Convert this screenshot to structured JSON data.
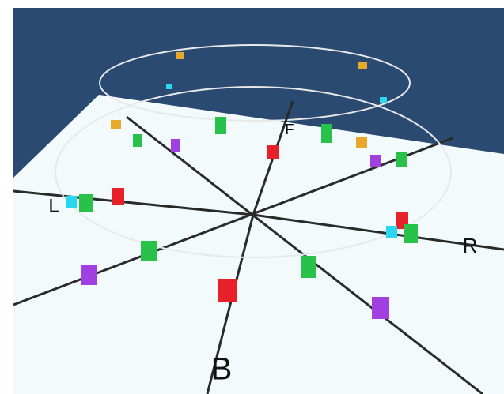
{
  "labels": {
    "front": "F",
    "left": "L",
    "right": "R",
    "back": "B"
  }
}
